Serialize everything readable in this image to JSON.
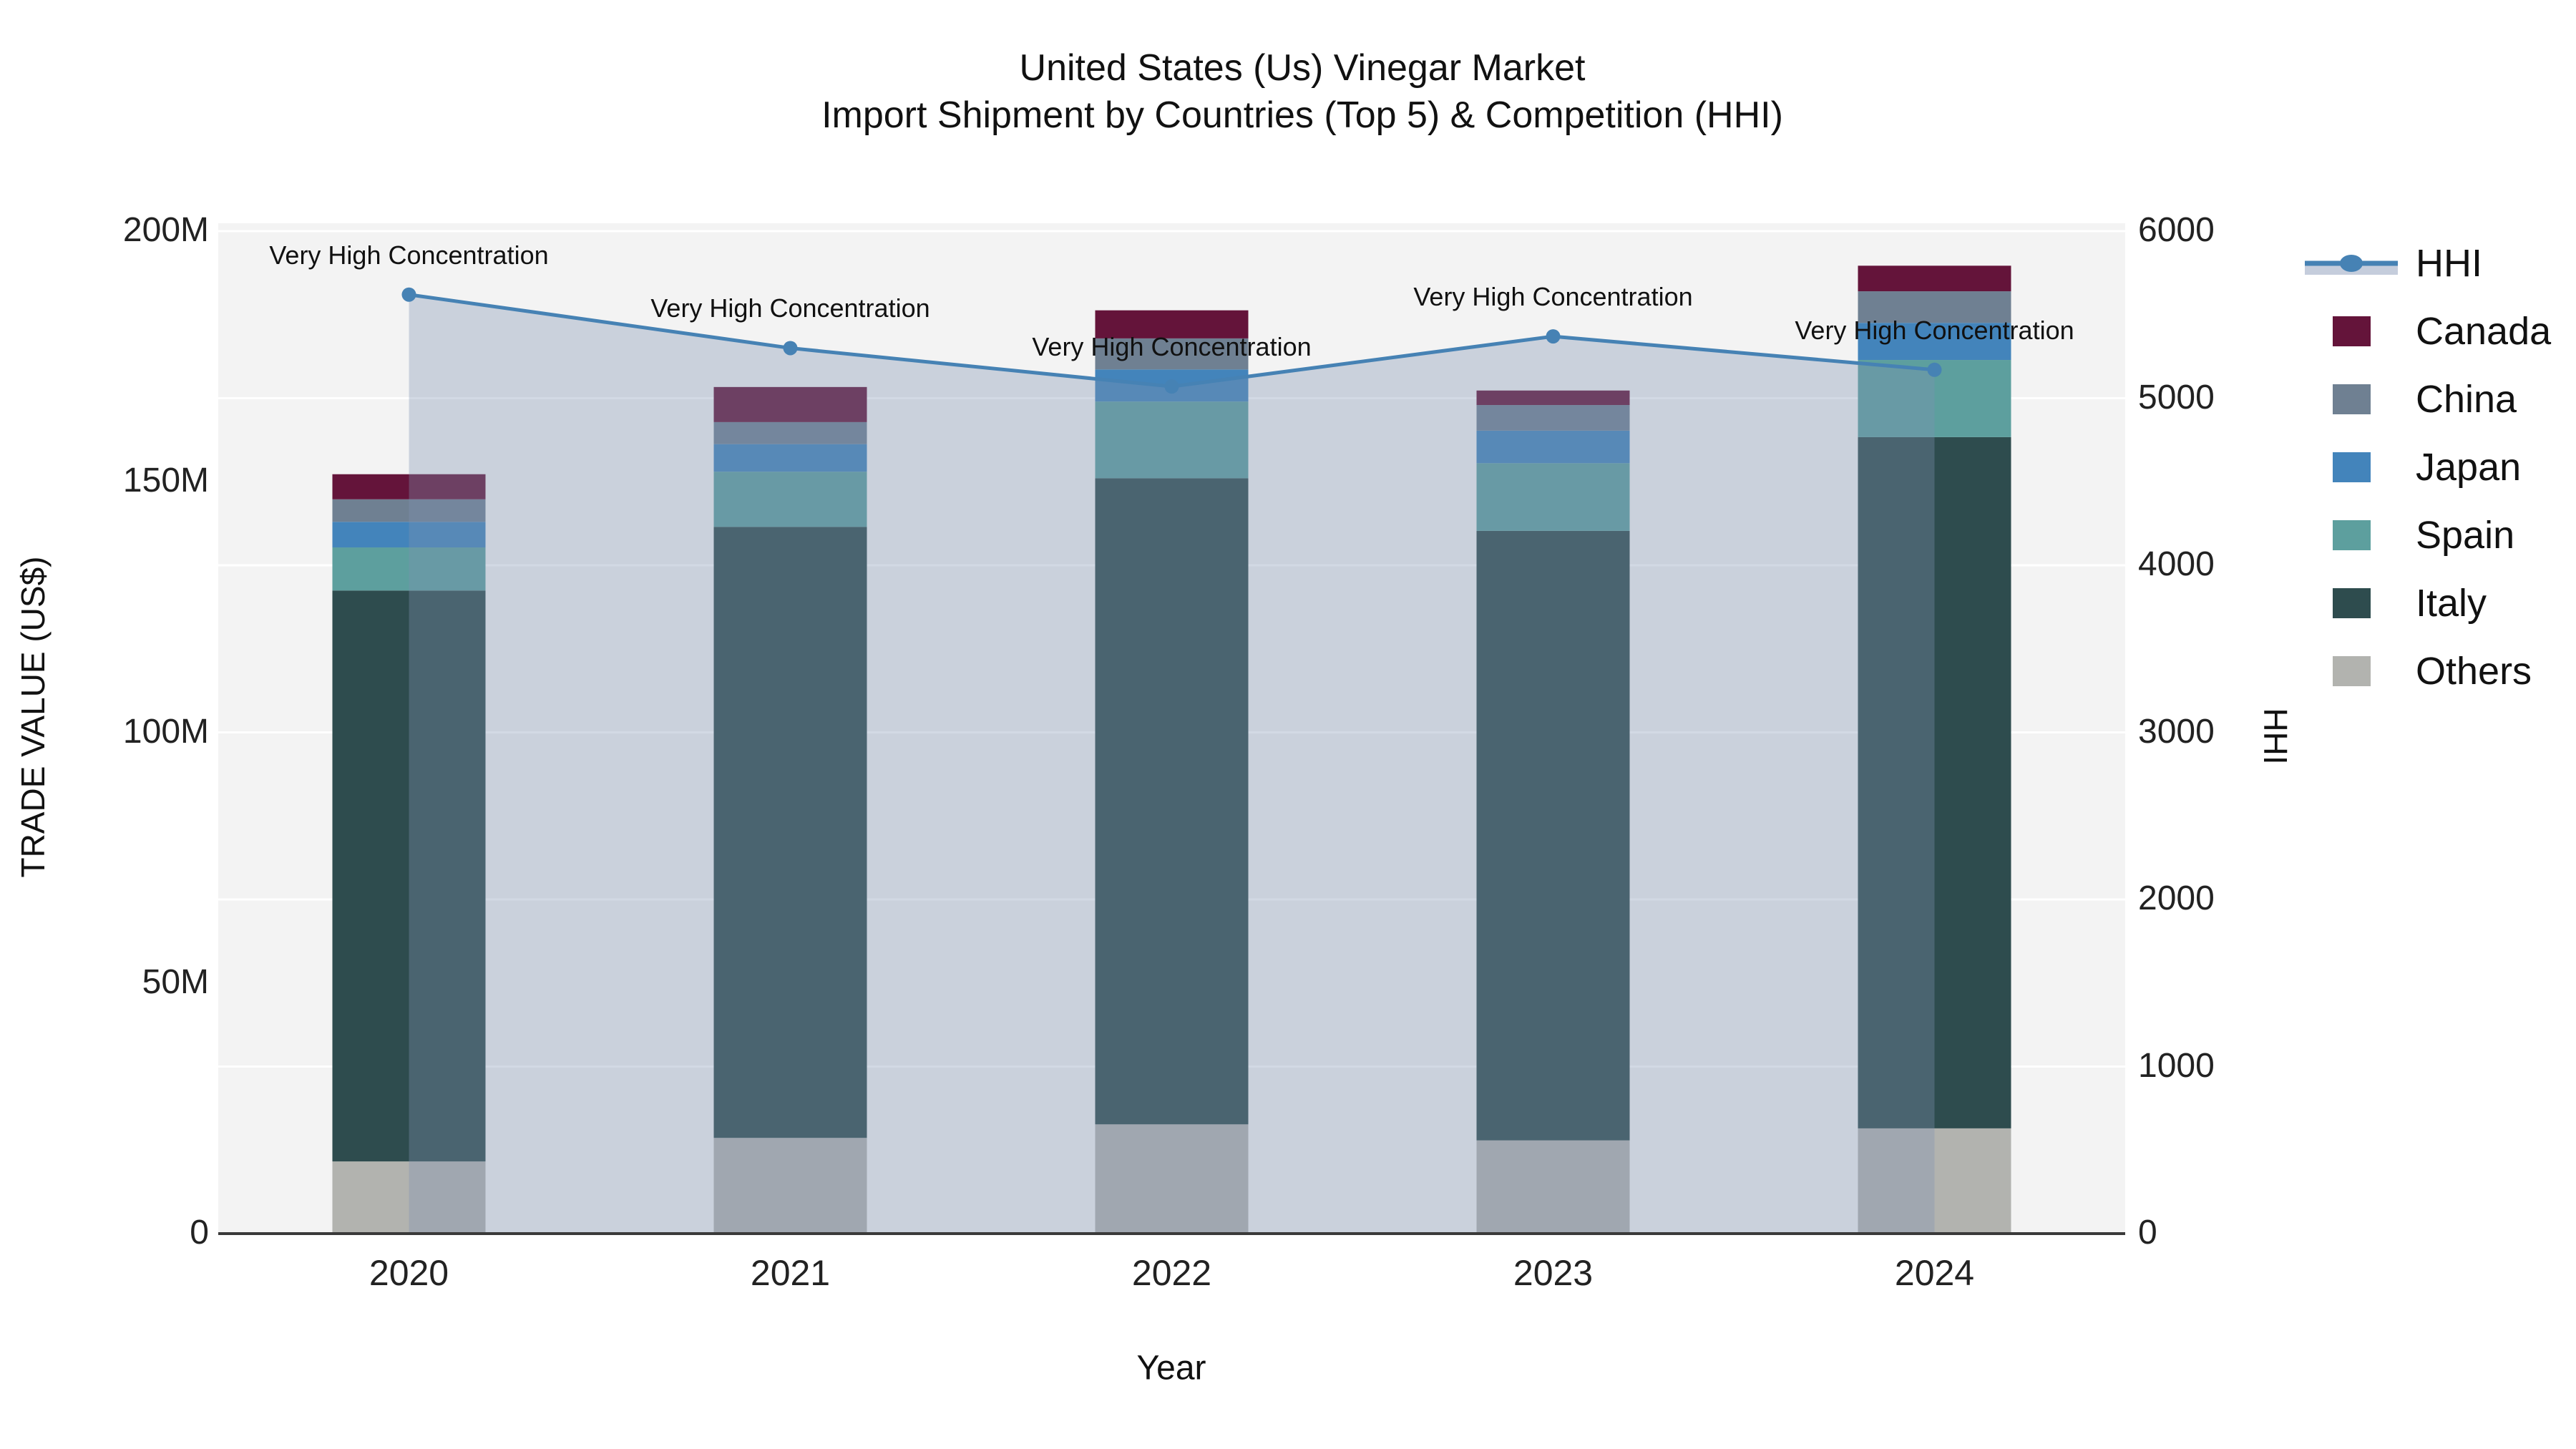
{
  "title": {
    "line1": "United States (Us) Vinegar Market",
    "line2": "Import Shipment by Countries (Top 5) & Competition (HHI)"
  },
  "axes": {
    "x": {
      "title": "Year",
      "ticks": [
        "2020",
        "2021",
        "2022",
        "2023",
        "2024"
      ]
    },
    "y_left": {
      "title": "TRADE VALUE (US$)",
      "ticks": [
        "0",
        "50M",
        "100M",
        "150M",
        "200M"
      ],
      "range_M": [
        0,
        200
      ]
    },
    "y_right": {
      "title": "HHI",
      "ticks": [
        "0",
        "1000",
        "2000",
        "3000",
        "4000",
        "5000",
        "6000"
      ],
      "range": [
        0,
        6000
      ]
    }
  },
  "legend": {
    "items": [
      {
        "label": "HHI",
        "type": "line",
        "color": "#4682B4"
      },
      {
        "label": "Canada",
        "type": "square",
        "color": "#64143A"
      },
      {
        "label": "China",
        "type": "square",
        "color": "#6F8092"
      },
      {
        "label": "Japan",
        "type": "square",
        "color": "#4384BB"
      },
      {
        "label": "Spain",
        "type": "square",
        "color": "#5D9F9E"
      },
      {
        "label": "Italy",
        "type": "square",
        "color": "#2E4C4E"
      },
      {
        "label": "Others",
        "type": "square",
        "color": "#B2B3AF"
      }
    ]
  },
  "chart_data": {
    "type": "combo_stacked_bar_line",
    "title": "United States (Us) Vinegar Market — Import Shipment by Countries (Top 5) & Competition (HHI)",
    "categories": [
      "2020",
      "2021",
      "2022",
      "2023",
      "2024"
    ],
    "xlabel": "Year",
    "ylabel_left": "TRADE VALUE (US$)",
    "ylabel_right": "HHI",
    "ylim_left_M": [
      0,
      200
    ],
    "ylim_right": [
      0,
      6000
    ],
    "grid": "horizontal white gridlines at right-axis ticks",
    "plot_bg": "#F3F3F3",
    "bar_value_unit": "million US$ trade value (estimated from axis)",
    "stack_order": "bottom_to_top",
    "bar_series": [
      {
        "name": "Others",
        "color": "#B2B3AF",
        "values": [
          14.4,
          19.1,
          21.8,
          18.6,
          21.0
        ]
      },
      {
        "name": "Italy",
        "color": "#2E4C4E",
        "values": [
          113.9,
          121.9,
          128.9,
          121.6,
          137.9
        ]
      },
      {
        "name": "Spain",
        "color": "#5D9F9E",
        "values": [
          8.6,
          11.0,
          15.3,
          13.5,
          15.4
        ]
      },
      {
        "name": "Japan",
        "color": "#4384BB",
        "values": [
          5.1,
          5.5,
          6.4,
          6.5,
          7.4
        ]
      },
      {
        "name": "China",
        "color": "#6F8092",
        "values": [
          4.5,
          4.4,
          6.2,
          5.1,
          6.3
        ]
      },
      {
        "name": "Canada",
        "color": "#64143A",
        "values": [
          5.0,
          7.0,
          5.6,
          2.9,
          5.1
        ]
      }
    ],
    "bar_totals_M": [
      151.5,
      168.9,
      184.2,
      168.2,
      193.0
    ],
    "line_series": {
      "name": "HHI",
      "axis": "right",
      "color": "#4682B4",
      "area_fill": "rgba(127,145,177,0.35)",
      "values": [
        5620,
        5300,
        5070,
        5370,
        5170
      ]
    },
    "annotations": [
      "Very High Concentration",
      "Very High Concentration",
      "Very High Concentration",
      "Very High Concentration",
      "Very High Concentration"
    ]
  }
}
